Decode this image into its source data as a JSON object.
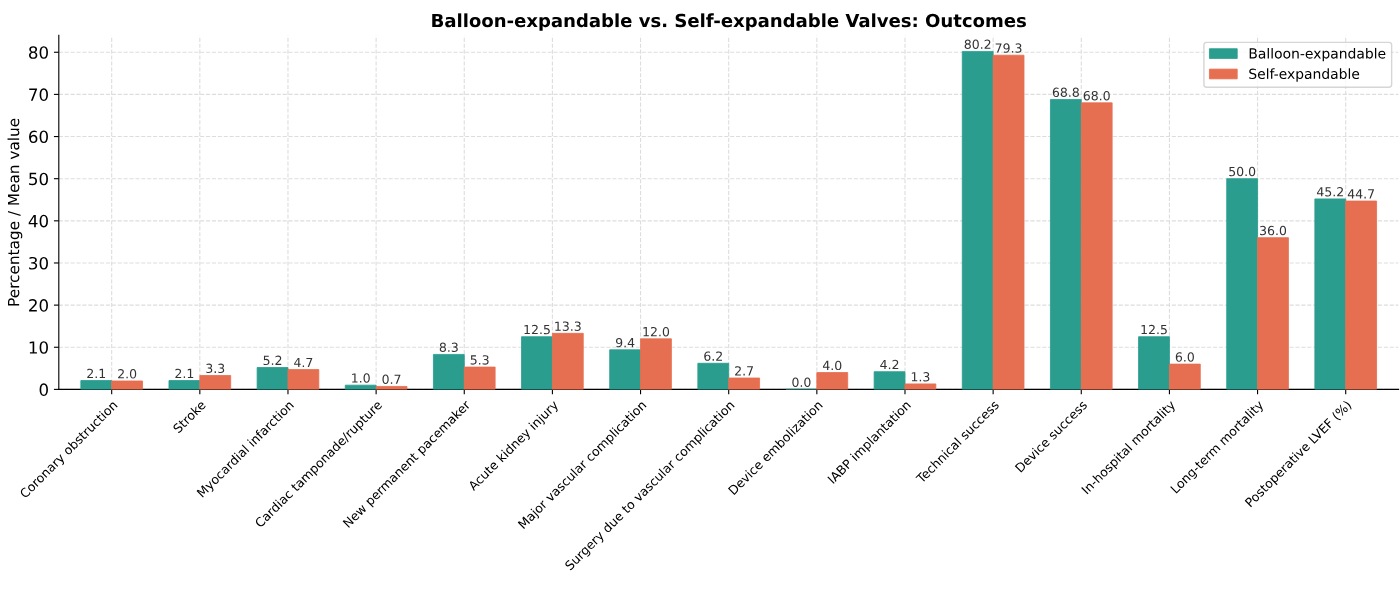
{
  "chart_data": {
    "type": "bar",
    "title": "Balloon-expandable vs. Self-expandable Valves: Outcomes",
    "ylabel": "Percentage / Mean value",
    "categories": [
      "Coronary obstruction",
      "Stroke",
      "Myocardial infarction",
      "Cardiac tamponade/rupture",
      "New permanent pacemaker",
      "Acute kidney injury",
      "Major vascular complication",
      "Surgery due to vascular complication",
      "Device embolization",
      "IABP implantation",
      "Technical success",
      "Device success",
      "In-hospital mortality",
      "Long-term mortality",
      "Postoperative LVEF (%)"
    ],
    "series": [
      {
        "name": "Balloon-expandable",
        "color": "#2a9d8f",
        "values": [
          2.1,
          2.1,
          5.2,
          1.0,
          8.3,
          12.5,
          9.4,
          6.2,
          0.0,
          4.2,
          80.2,
          68.8,
          12.5,
          50.0,
          45.2
        ],
        "value_labels": [
          "2.1",
          "2.1",
          "5.2",
          "1.0",
          "8.3",
          "12.5",
          "9.4",
          "6.2",
          "0.0",
          "4.2",
          "80.2",
          "68.8",
          "12.5",
          "50.0",
          "45.2"
        ]
      },
      {
        "name": "Self-expandable",
        "color": "#e76f51",
        "values": [
          2.0,
          3.3,
          4.7,
          0.7,
          5.3,
          13.3,
          12.0,
          2.7,
          4.0,
          1.3,
          79.3,
          68.0,
          6.0,
          36.0,
          44.7
        ],
        "value_labels": [
          "2.0",
          "3.3",
          "4.7",
          "0.7",
          "5.3",
          "13.3",
          "12.0",
          "2.7",
          "4.0",
          "1.3",
          "79.3",
          "68.0",
          "6.0",
          "36.0",
          "44.7"
        ]
      }
    ],
    "ylim": [
      0,
      84
    ],
    "yticks": [
      0,
      10,
      20,
      30,
      40,
      50,
      60,
      70,
      80
    ],
    "grid": true,
    "legend": "top right"
  }
}
